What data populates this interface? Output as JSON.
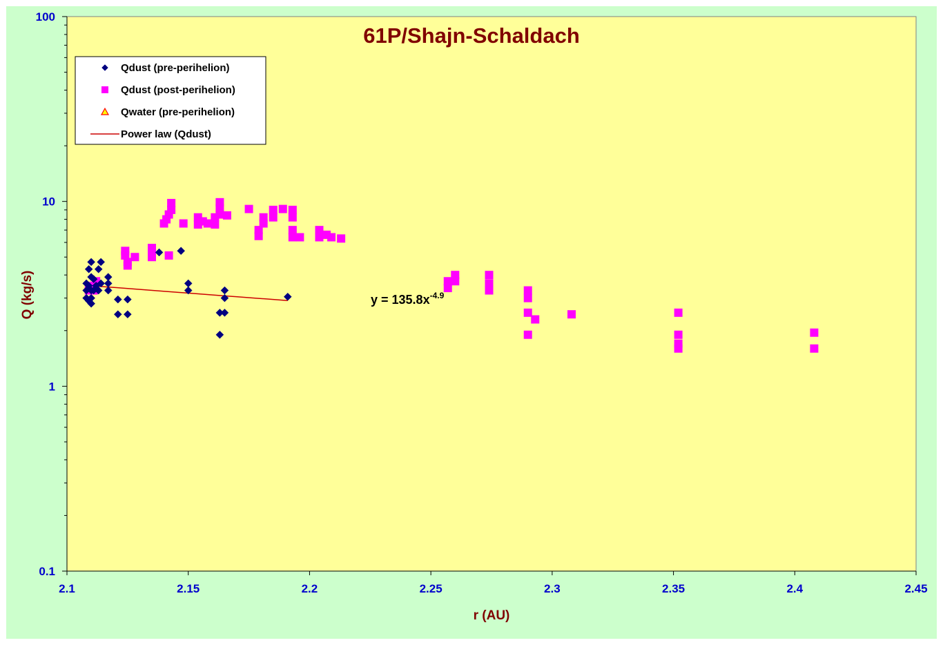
{
  "chart_data": {
    "type": "scatter",
    "title": "61P/Shajn-Schaldach",
    "xlabel": "r (AU)",
    "ylabel": "Q (kg/s)",
    "xlim": [
      2.1,
      2.45
    ],
    "ylim": [
      0.1,
      100
    ],
    "y_scale": "log",
    "x_ticks": [
      "2.1",
      "2.15",
      "2.2",
      "2.25",
      "2.3",
      "2.35",
      "2.4",
      "2.45"
    ],
    "y_ticks": [
      "0.1",
      "1",
      "10",
      "100"
    ],
    "legend_position": "top-left",
    "grid": false,
    "colors": {
      "plot_background": "#ffff99",
      "chart_background": "#ccffcc",
      "pre_perihelion": "#000080",
      "post_perihelion": "#ff00ff",
      "water": "#ff0000",
      "water_fill": "#ffff00",
      "fit_line": "#cc0000"
    },
    "legend": [
      {
        "label": "Qdust (pre-perihelion)",
        "marker": "diamond"
      },
      {
        "label": "Qdust (post-perihelion)",
        "marker": "square"
      },
      {
        "label": "Qwater (pre-perihelion)",
        "marker": "triangle"
      },
      {
        "label": "Power law (Qdust)",
        "marker": "line"
      }
    ],
    "series": [
      {
        "name": "Qdust (pre-perihelion)",
        "marker": "diamond",
        "points": [
          [
            2.108,
            3.6
          ],
          [
            2.108,
            3.3
          ],
          [
            2.108,
            3.0
          ],
          [
            2.109,
            3.5
          ],
          [
            2.109,
            2.9
          ],
          [
            2.109,
            4.3
          ],
          [
            2.11,
            4.7
          ],
          [
            2.11,
            3.9
          ],
          [
            2.11,
            3.3
          ],
          [
            2.11,
            2.8
          ],
          [
            2.11,
            3.0
          ],
          [
            2.111,
            3.8
          ],
          [
            2.111,
            3.3
          ],
          [
            2.112,
            3.5
          ],
          [
            2.113,
            4.3
          ],
          [
            2.113,
            3.3
          ],
          [
            2.114,
            4.7
          ],
          [
            2.114,
            3.6
          ],
          [
            2.117,
            3.9
          ],
          [
            2.117,
            3.6
          ],
          [
            2.117,
            3.3
          ],
          [
            2.121,
            2.95
          ],
          [
            2.121,
            2.45
          ],
          [
            2.125,
            2.45
          ],
          [
            2.125,
            2.95
          ],
          [
            2.138,
            5.3
          ],
          [
            2.147,
            5.4
          ],
          [
            2.15,
            3.6
          ],
          [
            2.15,
            3.3
          ],
          [
            2.163,
            2.5
          ],
          [
            2.163,
            1.9
          ],
          [
            2.165,
            3.3
          ],
          [
            2.165,
            3.0
          ],
          [
            2.165,
            2.5
          ],
          [
            2.191,
            3.05
          ]
        ]
      },
      {
        "name": "Qdust (post-perihelion)",
        "marker": "square",
        "points": [
          [
            2.109,
            3.3
          ],
          [
            2.111,
            3.5
          ],
          [
            2.111,
            3.3
          ],
          [
            2.112,
            3.7
          ],
          [
            2.124,
            5.4
          ],
          [
            2.124,
            5.1
          ],
          [
            2.125,
            4.7
          ],
          [
            2.125,
            4.5
          ],
          [
            2.128,
            5.0
          ],
          [
            2.135,
            5.6
          ],
          [
            2.135,
            5.3
          ],
          [
            2.135,
            5.0
          ],
          [
            2.142,
            5.1
          ],
          [
            2.14,
            7.6
          ],
          [
            2.141,
            8.0
          ],
          [
            2.142,
            8.5
          ],
          [
            2.143,
            9.0
          ],
          [
            2.143,
            9.8
          ],
          [
            2.148,
            7.6
          ],
          [
            2.154,
            7.5
          ],
          [
            2.154,
            8.2
          ],
          [
            2.156,
            7.8
          ],
          [
            2.158,
            7.6
          ],
          [
            2.161,
            7.5
          ],
          [
            2.161,
            8.2
          ],
          [
            2.163,
            8.5
          ],
          [
            2.163,
            9.2
          ],
          [
            2.163,
            9.9
          ],
          [
            2.166,
            8.4
          ],
          [
            2.175,
            9.1
          ],
          [
            2.179,
            6.5
          ],
          [
            2.179,
            7.0
          ],
          [
            2.181,
            7.6
          ],
          [
            2.181,
            8.2
          ],
          [
            2.185,
            8.2
          ],
          [
            2.185,
            9.0
          ],
          [
            2.189,
            9.1
          ],
          [
            2.193,
            8.2
          ],
          [
            2.193,
            9.0
          ],
          [
            2.193,
            7.0
          ],
          [
            2.193,
            6.4
          ],
          [
            2.196,
            6.4
          ],
          [
            2.204,
            6.4
          ],
          [
            2.204,
            7.0
          ],
          [
            2.207,
            6.6
          ],
          [
            2.209,
            6.4
          ],
          [
            2.213,
            6.3
          ],
          [
            2.257,
            3.4
          ],
          [
            2.257,
            3.7
          ],
          [
            2.26,
            3.7
          ],
          [
            2.26,
            4.0
          ],
          [
            2.274,
            3.3
          ],
          [
            2.274,
            3.6
          ],
          [
            2.274,
            4.0
          ],
          [
            2.29,
            3.3
          ],
          [
            2.29,
            3.0
          ],
          [
            2.29,
            2.5
          ],
          [
            2.293,
            2.3
          ],
          [
            2.29,
            1.9
          ],
          [
            2.308,
            2.45
          ],
          [
            2.352,
            2.5
          ],
          [
            2.352,
            1.9
          ],
          [
            2.352,
            1.7
          ],
          [
            2.352,
            1.6
          ],
          [
            2.408,
            1.95
          ],
          [
            2.408,
            1.6
          ]
        ]
      },
      {
        "name": "Qwater (pre-perihelion)",
        "marker": "triangle",
        "points": []
      },
      {
        "name": "Power law (Qdust)",
        "marker": "line",
        "fit": {
          "a": 135.8,
          "b": -4.9
        },
        "x_range": [
          2.108,
          2.191
        ]
      }
    ],
    "annotations": [
      {
        "text": "y = 135.8x",
        "superscript": "-4.9",
        "x": 2.225,
        "y": 2.9
      }
    ]
  }
}
